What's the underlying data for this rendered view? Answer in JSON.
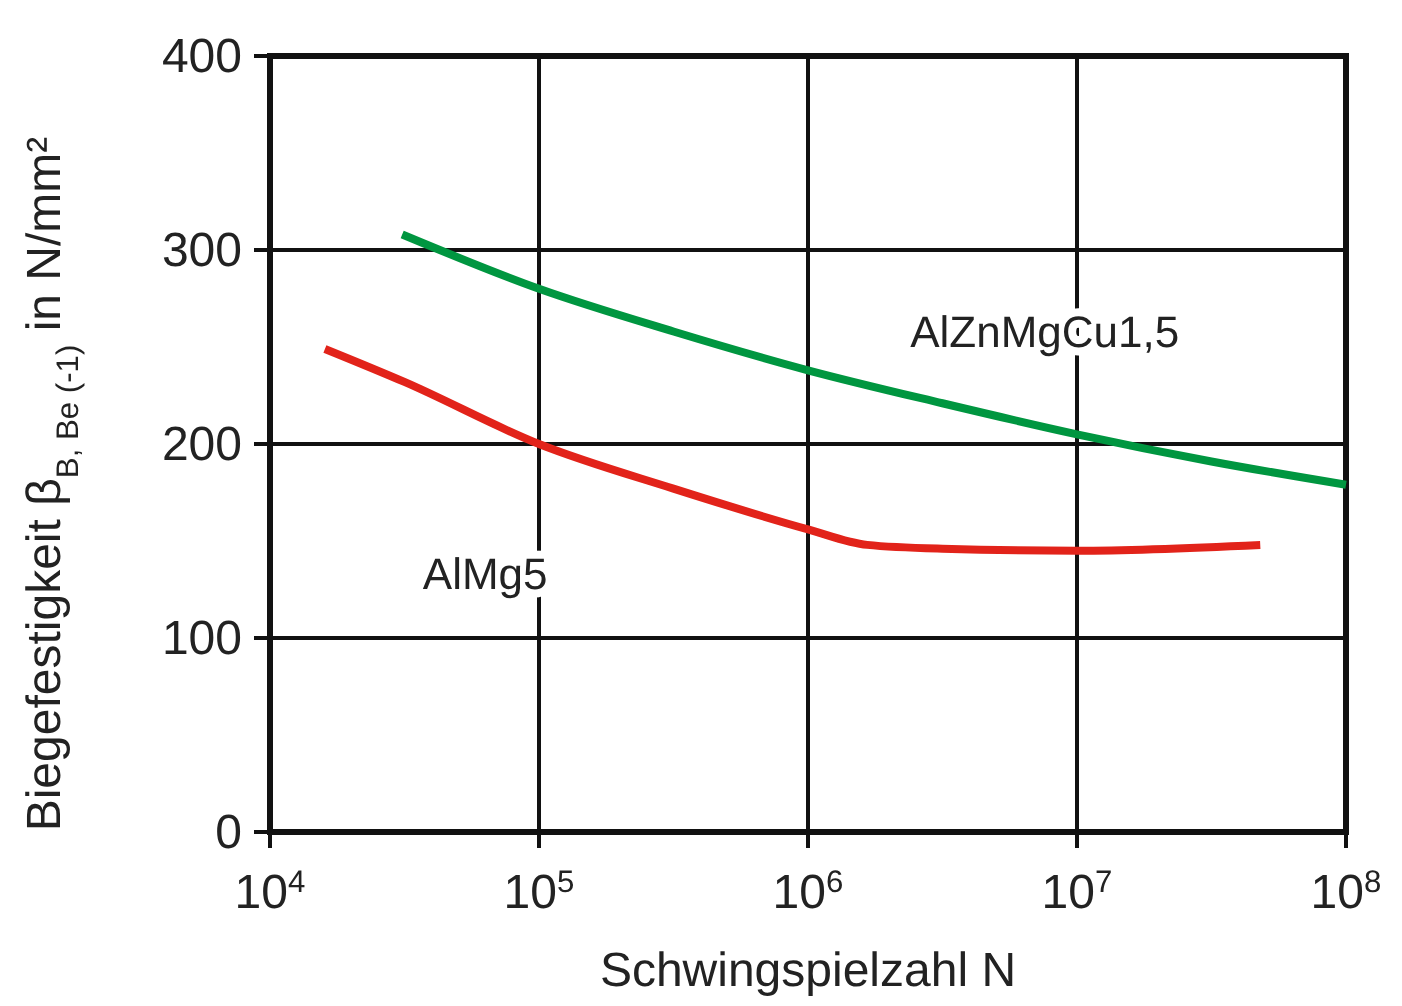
{
  "chart_data": {
    "type": "line",
    "xlabel": "Schwingspielzahl N",
    "ylabel": "Biegefestigkeit β$_{B, Be (-1)}$ in N/mm²",
    "log": "x",
    "grid": true,
    "marker": "none",
    "line_style": "solid",
    "xlim": [
      10000,
      100000000
    ],
    "xticks": [
      {
        "value": 10000,
        "label": "10$^{4}$"
      },
      {
        "value": 100000,
        "label": "10$^{5}$"
      },
      {
        "value": 1000000,
        "label": "10$^{6}$"
      },
      {
        "value": 10000000,
        "label": "10$^{7}$"
      },
      {
        "value": 100000000,
        "label": "10$^{8}$"
      }
    ],
    "ylim": [
      0,
      400
    ],
    "yticks": [
      0,
      100,
      200,
      300,
      400
    ],
    "series": [
      {
        "name": "AlZnMgCu1,5",
        "color": "#009640",
        "x": [
          31000,
          100000,
          316000,
          1000000,
          3160000,
          10000000,
          31600000,
          100000000
        ],
        "values": [
          308,
          280,
          258,
          238,
          221,
          205,
          191,
          179
        ]
      },
      {
        "name": "AlMg5",
        "color": "#e2231a",
        "x": [
          16000,
          31600,
          100000,
          316000,
          1000000,
          1660000,
          3160000,
          10000000,
          48000000
        ],
        "values": [
          249,
          232,
          200,
          177,
          156,
          148,
          146,
          145,
          148
        ]
      }
    ]
  }
}
